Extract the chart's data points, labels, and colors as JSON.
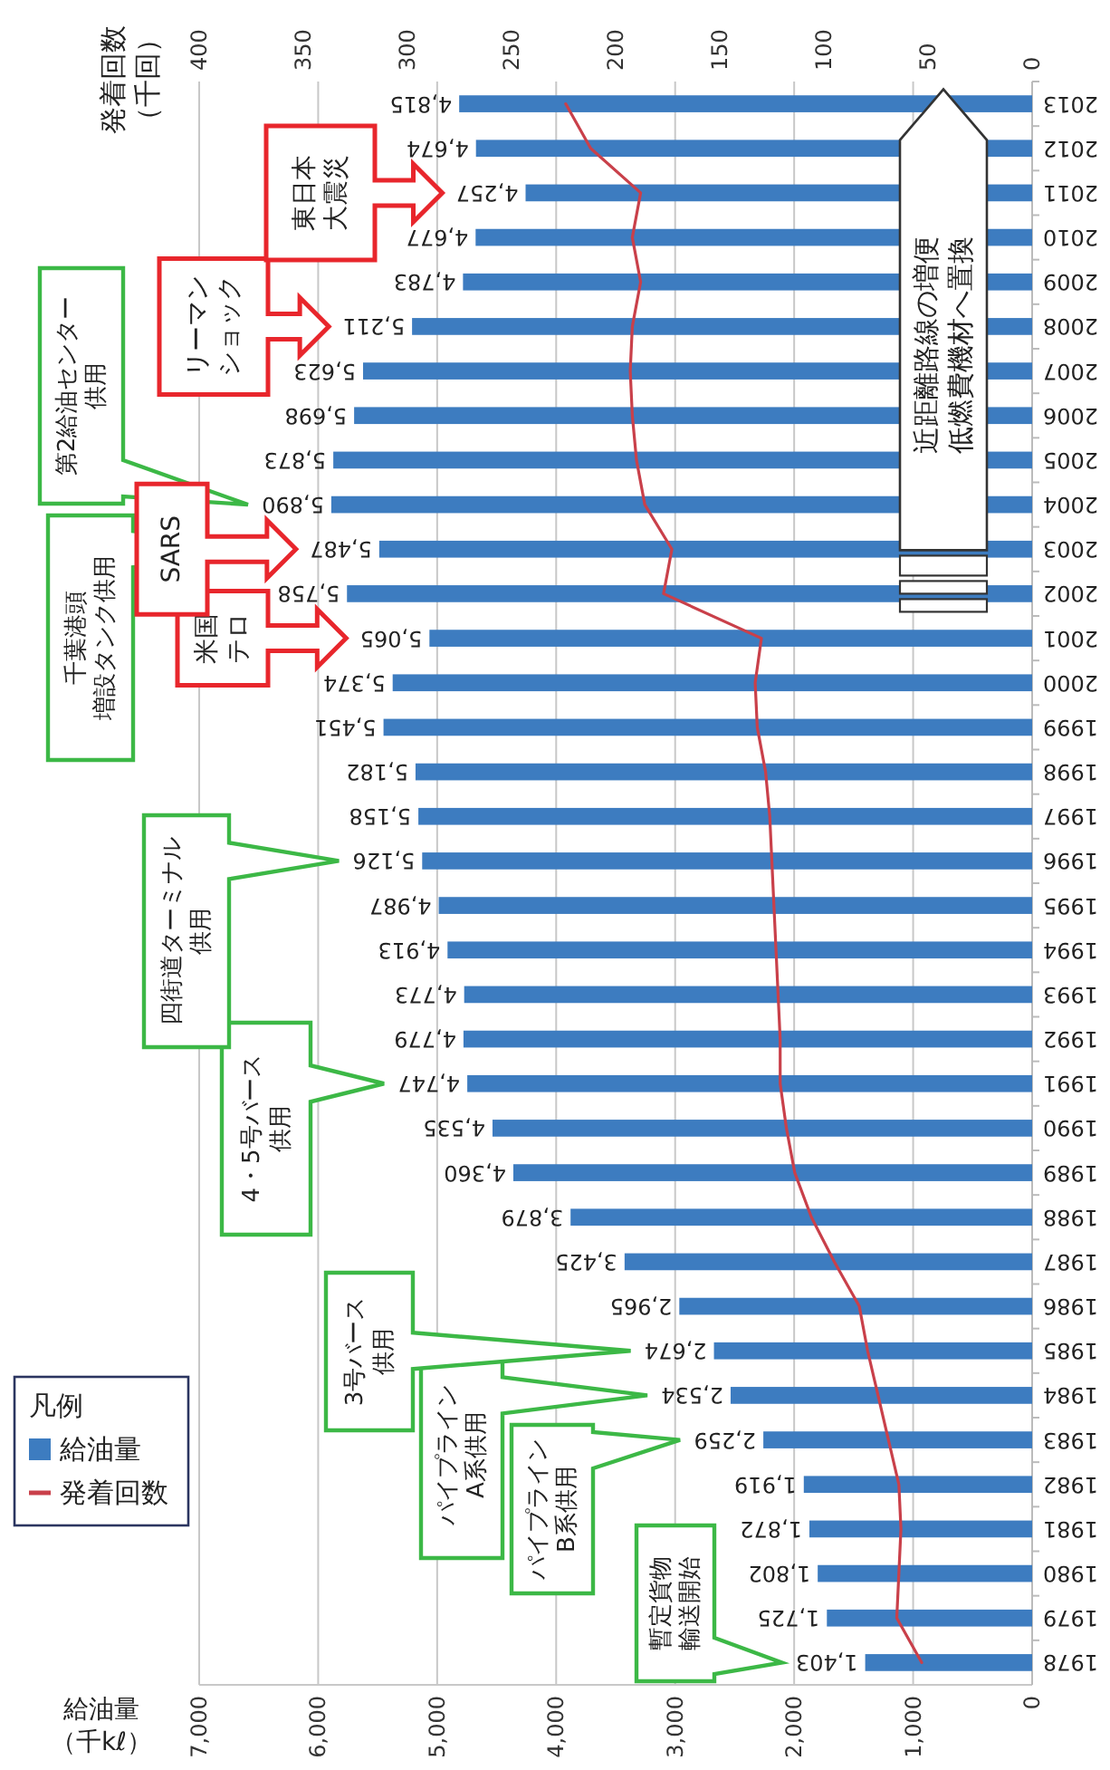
{
  "chart_data": {
    "type": "bar",
    "orientation": "horizontal",
    "xlabel": "給油量（千kℓ）",
    "x2label": "発着回数（千回）",
    "legend_title": "凡例",
    "legend": "left",
    "grid": "x",
    "categories": [
      "2013",
      "2012",
      "2011",
      "2010",
      "2009",
      "2008",
      "2007",
      "2006",
      "2005",
      "2004",
      "2003",
      "2002",
      "2001",
      "2000",
      "1999",
      "1998",
      "1997",
      "1996",
      "1995",
      "1994",
      "1993",
      "1992",
      "1991",
      "1990",
      "1989",
      "1988",
      "1987",
      "1986",
      "1985",
      "1984",
      "1983",
      "1982",
      "1981",
      "1980",
      "1979",
      "1978"
    ],
    "series": [
      {
        "name": "給油量",
        "color": "#3d7cc0",
        "values": [
          4815,
          4674,
          4257,
          4677,
          4783,
          5211,
          5623,
          5698,
          5873,
          5890,
          5487,
          5758,
          5065,
          5374,
          5451,
          5182,
          5158,
          5126,
          4987,
          4913,
          4773,
          4779,
          4747,
          4535,
          4360,
          3879,
          3425,
          2965,
          2674,
          2534,
          2259,
          1919,
          1872,
          1802,
          1725,
          1403
        ],
        "value_labels": [
          "4,815",
          "4,674",
          "4,257",
          "4,677",
          "4,783",
          "5,211",
          "5,623",
          "5,698",
          "5,873",
          "5,890",
          "5,487",
          "5,758",
          "5,065",
          "5,374",
          "5,451",
          "5,182",
          "5,158",
          "5,126",
          "4,987",
          "4,913",
          "4,773",
          "4,779",
          "4,747",
          "4,535",
          "4,360",
          "3,879",
          "3,425",
          "2,965",
          "2,674",
          "2,534",
          "2,259",
          "1,919",
          "1,872",
          "1,802",
          "1,725",
          "1,403"
        ]
      },
      {
        "name": "発着回数",
        "type": "line",
        "axis": "x2",
        "color": "#c9404a",
        "values": [
          224,
          212,
          188,
          192,
          188,
          192,
          193,
          192,
          190,
          186,
          173,
          177,
          130,
          133,
          132,
          128,
          126,
          125,
          124,
          123,
          122,
          121,
          121,
          118,
          114,
          106,
          95,
          83,
          79,
          74,
          69,
          64,
          63,
          64,
          65,
          53
        ]
      }
    ],
    "xlim": [
      7000,
      0
    ],
    "xticks": [
      {
        "value": 7000,
        "label": "7,000"
      },
      {
        "value": 6000,
        "label": "6,000"
      },
      {
        "value": 5000,
        "label": "5,000"
      },
      {
        "value": 4000,
        "label": "4,000"
      },
      {
        "value": 3000,
        "label": "3,000"
      },
      {
        "value": 2000,
        "label": "2,000"
      },
      {
        "value": 1000,
        "label": "1,000"
      },
      {
        "value": 0,
        "label": "0"
      }
    ],
    "x2lim": [
      400,
      0
    ],
    "x2ticks": [
      400,
      350,
      300,
      250,
      200,
      150,
      100,
      50,
      0
    ],
    "annotations": [
      "暫定貨物輸送開始",
      "パイプラインB系供用",
      "パイプラインA系供用",
      "3号バース供用",
      "4・5号バース供用",
      "四街道ターミナル供用",
      "千葉港頭増設タンク供用",
      "第2給油センター供用",
      "米国テロ",
      "SARS",
      "リーマンショック",
      "東日本大震災",
      "近距離路線の増便低燃費機材へ置換"
    ]
  }
}
